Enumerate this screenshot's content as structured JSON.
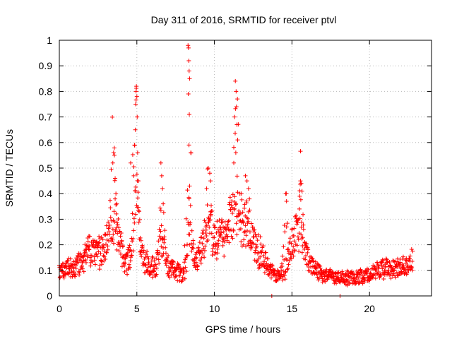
{
  "chart_data": {
    "type": "scatter",
    "title": "Day 311 of 2016, SRMTID for receiver ptvl",
    "xlabel": "GPS time / hours",
    "ylabel": "SRMTID / TECUs",
    "xlim": [
      0,
      24
    ],
    "ylim": [
      0,
      1
    ],
    "xticks": [
      0,
      5,
      10,
      15,
      20
    ],
    "xtick_labels": [
      "0",
      "5",
      "10",
      "15",
      "20"
    ],
    "yticks": [
      0,
      0.1,
      0.2,
      0.3,
      0.4,
      0.5,
      0.6,
      0.7,
      0.8,
      0.9,
      1
    ],
    "ytick_labels": [
      "0",
      "0.1",
      "0.2",
      "0.3",
      "0.4",
      "0.5",
      "0.6",
      "0.7",
      "0.8",
      "0.9",
      "1"
    ],
    "grid": true,
    "marker": "plus",
    "color": "#ff0000",
    "series": [
      {
        "name": "ptvl",
        "profile": [
          [
            0.0,
            0.1
          ],
          [
            0.5,
            0.11
          ],
          [
            1.0,
            0.11
          ],
          [
            1.5,
            0.14
          ],
          [
            2.0,
            0.18
          ],
          [
            2.5,
            0.17
          ],
          [
            3.0,
            0.19
          ],
          [
            3.3,
            0.24
          ],
          [
            3.6,
            0.33
          ],
          [
            3.9,
            0.2
          ],
          [
            4.2,
            0.13
          ],
          [
            4.5,
            0.14
          ],
          [
            4.8,
            0.25
          ],
          [
            4.95,
            0.45
          ],
          [
            5.1,
            0.28
          ],
          [
            5.4,
            0.14
          ],
          [
            5.8,
            0.12
          ],
          [
            6.2,
            0.1
          ],
          [
            6.6,
            0.22
          ],
          [
            7.0,
            0.12
          ],
          [
            7.5,
            0.1
          ],
          [
            7.9,
            0.08
          ],
          [
            8.2,
            0.12
          ],
          [
            8.35,
            0.3
          ],
          [
            8.6,
            0.15
          ],
          [
            9.0,
            0.16
          ],
          [
            9.5,
            0.24
          ],
          [
            10.0,
            0.24
          ],
          [
            10.5,
            0.22
          ],
          [
            11.0,
            0.3
          ],
          [
            11.4,
            0.35
          ],
          [
            11.8,
            0.28
          ],
          [
            12.2,
            0.24
          ],
          [
            12.6,
            0.2
          ],
          [
            13.0,
            0.16
          ],
          [
            13.5,
            0.11
          ],
          [
            14.0,
            0.08
          ],
          [
            14.5,
            0.09
          ],
          [
            15.0,
            0.2
          ],
          [
            15.5,
            0.3
          ],
          [
            15.8,
            0.18
          ],
          [
            16.2,
            0.12
          ],
          [
            16.8,
            0.09
          ],
          [
            17.3,
            0.08
          ],
          [
            17.8,
            0.07
          ],
          [
            18.5,
            0.07
          ],
          [
            19.0,
            0.07
          ],
          [
            19.5,
            0.08
          ],
          [
            20.0,
            0.08
          ],
          [
            20.5,
            0.1
          ],
          [
            21.0,
            0.11
          ],
          [
            21.5,
            0.11
          ],
          [
            22.0,
            0.12
          ],
          [
            22.5,
            0.12
          ],
          [
            22.8,
            0.14
          ]
        ],
        "peaks": [
          [
            3.5,
            0.57
          ],
          [
            4.9,
            0.84
          ],
          [
            6.6,
            0.54
          ],
          [
            8.35,
            0.99
          ],
          [
            9.6,
            0.52
          ],
          [
            11.4,
            0.84
          ],
          [
            12.1,
            0.47
          ],
          [
            14.6,
            0.41
          ],
          [
            15.6,
            0.46
          ]
        ],
        "points": [
          [
            3.45,
            0.52
          ],
          [
            3.5,
            0.56
          ],
          [
            3.55,
            0.55
          ],
          [
            3.6,
            0.46
          ],
          [
            3.65,
            0.4
          ],
          [
            3.7,
            0.36
          ],
          [
            4.85,
            0.59
          ],
          [
            4.9,
            0.65
          ],
          [
            4.92,
            0.75
          ],
          [
            4.95,
            0.8
          ],
          [
            4.97,
            0.82
          ],
          [
            5.0,
            0.78
          ],
          [
            5.02,
            0.7
          ],
          [
            5.05,
            0.56
          ],
          [
            5.1,
            0.45
          ],
          [
            4.6,
            0.52
          ],
          [
            4.8,
            0.47
          ],
          [
            6.55,
            0.52
          ],
          [
            6.6,
            0.47
          ],
          [
            6.65,
            0.42
          ],
          [
            6.7,
            0.36
          ],
          [
            8.3,
            0.98
          ],
          [
            8.33,
            0.97
          ],
          [
            8.35,
            0.92
          ],
          [
            8.37,
            0.88
          ],
          [
            8.4,
            0.85
          ],
          [
            8.32,
            0.79
          ],
          [
            8.38,
            0.71
          ],
          [
            8.36,
            0.59
          ],
          [
            8.4,
            0.43
          ],
          [
            9.6,
            0.5
          ],
          [
            9.7,
            0.48
          ],
          [
            9.75,
            0.45
          ],
          [
            9.5,
            0.42
          ],
          [
            11.35,
            0.84
          ],
          [
            11.4,
            0.8
          ],
          [
            11.42,
            0.74
          ],
          [
            11.3,
            0.7
          ],
          [
            11.45,
            0.67
          ],
          [
            11.5,
            0.61
          ],
          [
            11.38,
            0.56
          ],
          [
            11.25,
            0.52
          ],
          [
            12.0,
            0.47
          ],
          [
            12.1,
            0.45
          ],
          [
            12.2,
            0.42
          ],
          [
            14.6,
            0.4
          ],
          [
            14.65,
            0.37
          ],
          [
            15.55,
            0.45
          ],
          [
            15.6,
            0.44
          ],
          [
            15.65,
            0.41
          ],
          [
            15.5,
            0.39
          ],
          [
            13.7,
            0.0
          ],
          [
            18.1,
            0.0
          ]
        ]
      }
    ]
  }
}
